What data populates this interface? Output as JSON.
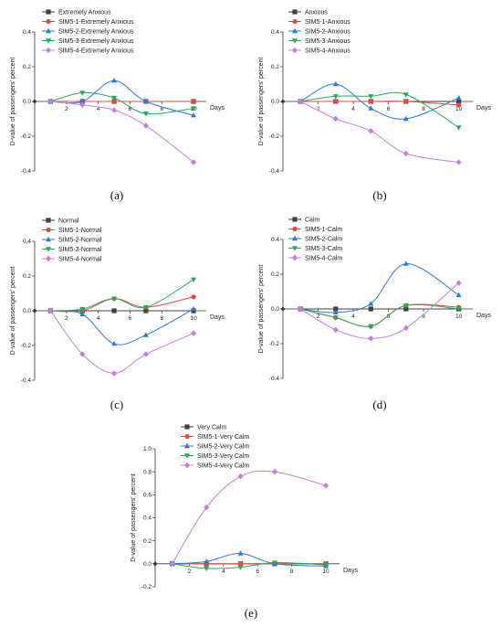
{
  "chart_data": [
    {
      "type": "line",
      "panel_label": "(a)",
      "x": [
        1,
        3,
        5,
        7,
        10
      ],
      "xlabel": "Days",
      "ylabel": "D-value of passengers' percent",
      "xlim": [
        0,
        10.8
      ],
      "ylim": [
        -0.4,
        0.4
      ],
      "xticks": [
        "2",
        "4",
        "6",
        "8",
        "10"
      ],
      "yticks": [
        "0.4",
        "0.2",
        "0.0",
        "-0.2",
        "-0.4"
      ],
      "legend_position": "top-left",
      "series": [
        {
          "name": "Extremely Anxious",
          "color": "#404040",
          "marker": "square",
          "values": [
            0,
            0,
            0,
            0,
            0
          ]
        },
        {
          "name": "SIM5-1-Extremely Anxious",
          "color": "#e8473f",
          "marker": "circle",
          "values": [
            0,
            0,
            0,
            0,
            0
          ]
        },
        {
          "name": "SIM5-2-Extremely Anxious",
          "color": "#2b7bd6",
          "marker": "triangle-up",
          "values": [
            0,
            0,
            0.12,
            0,
            -0.08
          ]
        },
        {
          "name": "SIM5-3-Extremely Anxious",
          "color": "#2aa85a",
          "marker": "triangle-down",
          "values": [
            0,
            0.05,
            0.02,
            -0.07,
            -0.04
          ]
        },
        {
          "name": "SIM5-4-Extremely Anxious",
          "color": "#c77de0",
          "marker": "diamond",
          "values": [
            0,
            -0.02,
            -0.05,
            -0.14,
            -0.35
          ]
        }
      ]
    },
    {
      "type": "line",
      "panel_label": "(b)",
      "x": [
        1,
        3,
        5,
        7,
        10
      ],
      "xlabel": "Days",
      "ylabel": "D-value of passengers' percent",
      "xlim": [
        0,
        10.8
      ],
      "ylim": [
        -0.4,
        0.4
      ],
      "xticks": [
        "2",
        "4",
        "6",
        "8",
        "10"
      ],
      "yticks": [
        "0.4",
        "0.2",
        "0.0",
        "-0.2",
        "-0.4"
      ],
      "legend_position": "top-left",
      "series": [
        {
          "name": "Anxious",
          "color": "#404040",
          "marker": "square",
          "values": [
            0,
            0,
            0,
            0,
            0
          ]
        },
        {
          "name": "SIM5-1-Anxious",
          "color": "#e8473f",
          "marker": "circle",
          "values": [
            0,
            0,
            0,
            0,
            -0.02
          ]
        },
        {
          "name": "SIM5-2-Anxious",
          "color": "#2b7bd6",
          "marker": "triangle-up",
          "values": [
            0,
            0.1,
            -0.04,
            -0.1,
            0.02
          ]
        },
        {
          "name": "SIM5-3-Anxious",
          "color": "#2aa85a",
          "marker": "triangle-down",
          "values": [
            0,
            0.03,
            0.03,
            0.04,
            -0.15
          ]
        },
        {
          "name": "SIM5-4-Anxious",
          "color": "#c77de0",
          "marker": "diamond",
          "values": [
            0,
            -0.1,
            -0.17,
            -0.3,
            -0.35
          ]
        }
      ]
    },
    {
      "type": "line",
      "panel_label": "(c)",
      "x": [
        1,
        3,
        5,
        7,
        10
      ],
      "xlabel": "Days",
      "ylabel": "D-value of passengers' percent",
      "xlim": [
        0,
        10.8
      ],
      "ylim": [
        -0.4,
        0.4
      ],
      "xticks": [
        "2",
        "4",
        "6",
        "8",
        "10"
      ],
      "yticks": [
        "0.4",
        "0.2",
        "0.0",
        "-0.2",
        "-0.4"
      ],
      "legend_position": "top-left",
      "series": [
        {
          "name": "Normal",
          "color": "#404040",
          "marker": "square",
          "values": [
            0,
            0,
            0,
            0,
            0
          ]
        },
        {
          "name": "SIM5-1-Normal",
          "color": "#e8473f",
          "marker": "circle",
          "values": [
            0,
            0,
            0.07,
            0.02,
            0.08
          ]
        },
        {
          "name": "SIM5-2-Normal",
          "color": "#2b7bd6",
          "marker": "triangle-up",
          "values": [
            0,
            -0.02,
            -0.19,
            -0.14,
            0.01
          ]
        },
        {
          "name": "SIM5-3-Normal",
          "color": "#2aa85a",
          "marker": "triangle-down",
          "values": [
            0,
            0.01,
            0.07,
            0.02,
            0.18
          ]
        },
        {
          "name": "SIM5-4-Normal",
          "color": "#c77de0",
          "marker": "diamond",
          "values": [
            0,
            -0.25,
            -0.36,
            -0.25,
            -0.13
          ]
        }
      ]
    },
    {
      "type": "line",
      "panel_label": "(d)",
      "x": [
        1,
        3,
        5,
        7,
        10
      ],
      "xlabel": "Days",
      "ylabel": "D-value of passengers' percent",
      "xlim": [
        0,
        10.8
      ],
      "ylim": [
        -0.4,
        0.4
      ],
      "xticks": [
        "2",
        "4",
        "6",
        "8",
        "10"
      ],
      "yticks": [
        "0.4",
        "0.2",
        "0.0",
        "-0.2",
        "-0.4"
      ],
      "legend_position": "top-left",
      "series": [
        {
          "name": "Calm",
          "color": "#404040",
          "marker": "square",
          "values": [
            0,
            0,
            0,
            0,
            0
          ]
        },
        {
          "name": "SIM5-1-Calm",
          "color": "#e8473f",
          "marker": "circle",
          "values": [
            0,
            -0.05,
            -0.1,
            0.02,
            0.01
          ]
        },
        {
          "name": "SIM5-2-Calm",
          "color": "#2b7bd6",
          "marker": "triangle-up",
          "values": [
            0,
            -0.02,
            0.03,
            0.26,
            0.08
          ]
        },
        {
          "name": "SIM5-3-Calm",
          "color": "#2aa85a",
          "marker": "triangle-down",
          "values": [
            0,
            -0.05,
            -0.1,
            0.02,
            0
          ]
        },
        {
          "name": "SIM5-4-Calm",
          "color": "#c77de0",
          "marker": "diamond",
          "values": [
            0,
            -0.12,
            -0.17,
            -0.11,
            0.15
          ]
        }
      ]
    },
    {
      "type": "line",
      "panel_label": "(e)",
      "x": [
        1,
        3,
        5,
        7,
        10
      ],
      "xlabel": "Days",
      "ylabel": "D-value of passengers' percent",
      "xlim": [
        0,
        10.8
      ],
      "ylim": [
        -0.2,
        1.0
      ],
      "xticks": [
        "2",
        "4",
        "6",
        "8",
        "10"
      ],
      "yticks": [
        "1.0",
        "0.8",
        "0.6",
        "0.4",
        "0.2",
        "0.0",
        "-0.2"
      ],
      "legend_position": "top-left",
      "series": [
        {
          "name": "Very Calm",
          "color": "#404040",
          "marker": "square",
          "values": [
            0,
            0,
            0,
            0,
            0
          ]
        },
        {
          "name": "SIM5-1-Very Calm",
          "color": "#e8473f",
          "marker": "circle",
          "values": [
            0,
            0,
            0,
            0,
            0
          ]
        },
        {
          "name": "SIM5-2-Very Calm",
          "color": "#2b7bd6",
          "marker": "triangle-up",
          "values": [
            0,
            0.02,
            0.09,
            0,
            -0.02
          ]
        },
        {
          "name": "SIM5-3-Very Calm",
          "color": "#2aa85a",
          "marker": "triangle-down",
          "values": [
            0,
            -0.04,
            -0.03,
            0.01,
            -0.01
          ]
        },
        {
          "name": "SIM5-4-Very Calm",
          "color": "#c77de0",
          "marker": "diamond",
          "values": [
            0,
            0.49,
            0.76,
            0.8,
            0.68
          ]
        }
      ]
    }
  ]
}
